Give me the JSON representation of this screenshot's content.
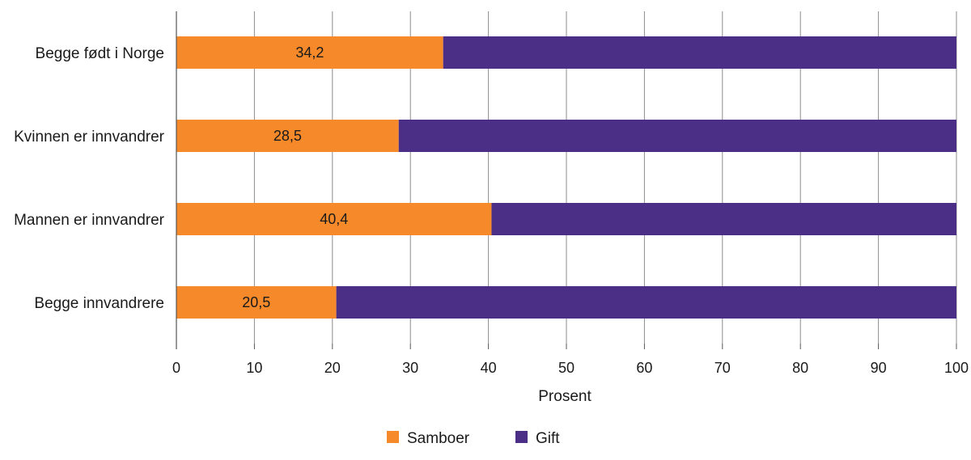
{
  "chart_data": {
    "type": "bar",
    "orientation": "horizontal",
    "stacked": true,
    "categories": [
      "Begge født i Norge",
      "Kvinnen er innvandrer",
      "Mannen er innvandrer",
      "Begge innvandrere"
    ],
    "series": [
      {
        "name": "Samboer",
        "color": "#F6892A",
        "values": [
          34.2,
          28.5,
          40.4,
          20.5
        ],
        "labels": [
          "34,2",
          "28,5",
          "40,4",
          "20,5"
        ]
      },
      {
        "name": "Gift",
        "color": "#4B2F86",
        "values": [
          65.8,
          71.5,
          59.6,
          79.5
        ]
      }
    ],
    "xlabel": "Prosent",
    "xlim": [
      0,
      100
    ],
    "xticks": [
      0,
      10,
      20,
      30,
      40,
      50,
      60,
      70,
      80,
      90,
      100
    ],
    "xtick_labels": [
      "0",
      "10",
      "20",
      "30",
      "40",
      "50",
      "60",
      "70",
      "80",
      "90",
      "100"
    ],
    "grid": "vertical",
    "legend": "bottom-center",
    "gridline_color": "#8c8c8c",
    "axis_color": "#555555"
  }
}
